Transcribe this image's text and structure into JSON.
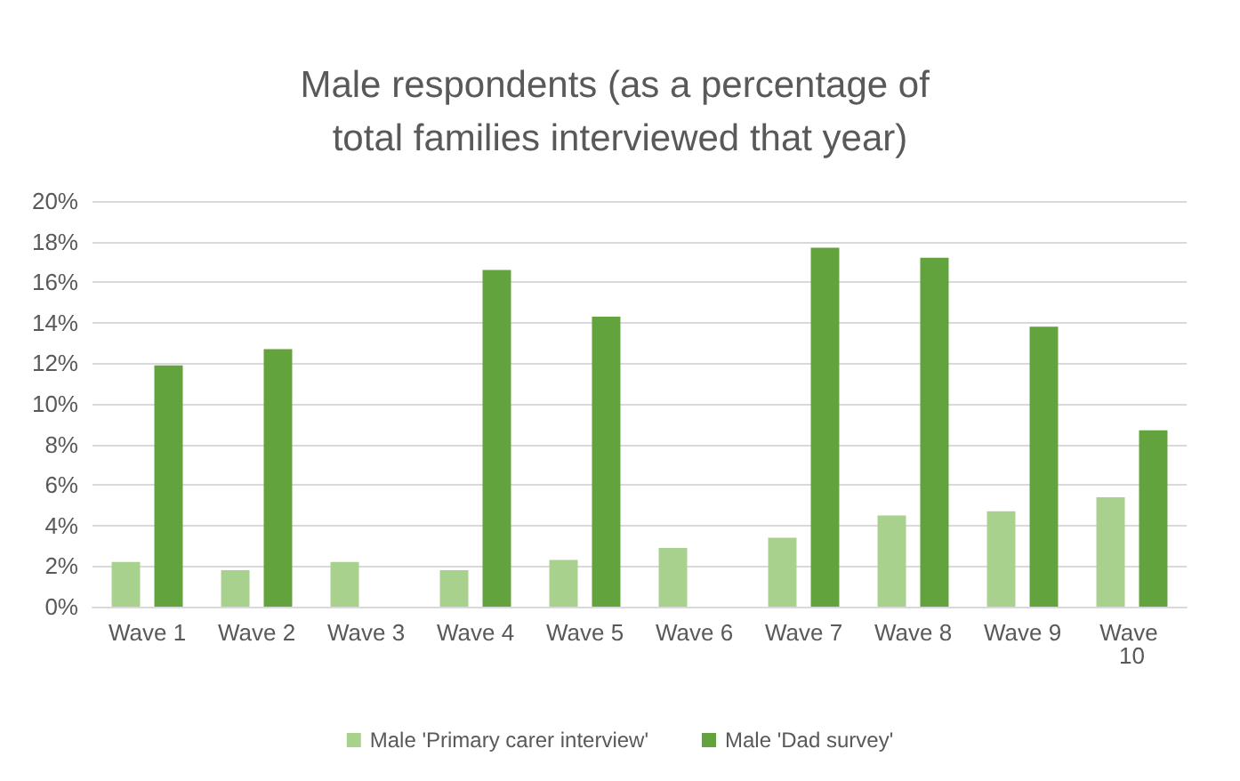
{
  "chart_data": {
    "type": "bar",
    "title": "Male respondents (as a percentage of total families interviewed that year)",
    "categories": [
      "Wave 1",
      "Wave 2",
      "Wave 3",
      "Wave 4",
      "Wave 5",
      "Wave 6",
      "Wave 7",
      "Wave 8",
      "Wave 9",
      "Wave 10"
    ],
    "series": [
      {
        "name": "Male 'Primary carer interview'",
        "color": "#a9d18e",
        "values": [
          2.2,
          1.8,
          2.2,
          1.8,
          2.3,
          2.9,
          3.4,
          4.5,
          4.7,
          5.4
        ]
      },
      {
        "name": "Male 'Dad survey'",
        "color": "#63a33d",
        "values": [
          11.9,
          12.7,
          null,
          16.6,
          14.3,
          null,
          17.7,
          17.2,
          13.8,
          8.7
        ]
      }
    ],
    "ylim": [
      0,
      20
    ],
    "yticks": [
      {
        "value": 0,
        "label": "0%"
      },
      {
        "value": 2,
        "label": "2%"
      },
      {
        "value": 4,
        "label": "4%"
      },
      {
        "value": 6,
        "label": "6%"
      },
      {
        "value": 8,
        "label": "8%"
      },
      {
        "value": 10,
        "label": "10%"
      },
      {
        "value": 12,
        "label": "12%"
      },
      {
        "value": 14,
        "label": "14%"
      },
      {
        "value": 16,
        "label": "16%"
      },
      {
        "value": 18,
        "label": "18%"
      },
      {
        "value": 20,
        "label": "20%"
      }
    ],
    "grid": "y",
    "legend": "bottom"
  }
}
